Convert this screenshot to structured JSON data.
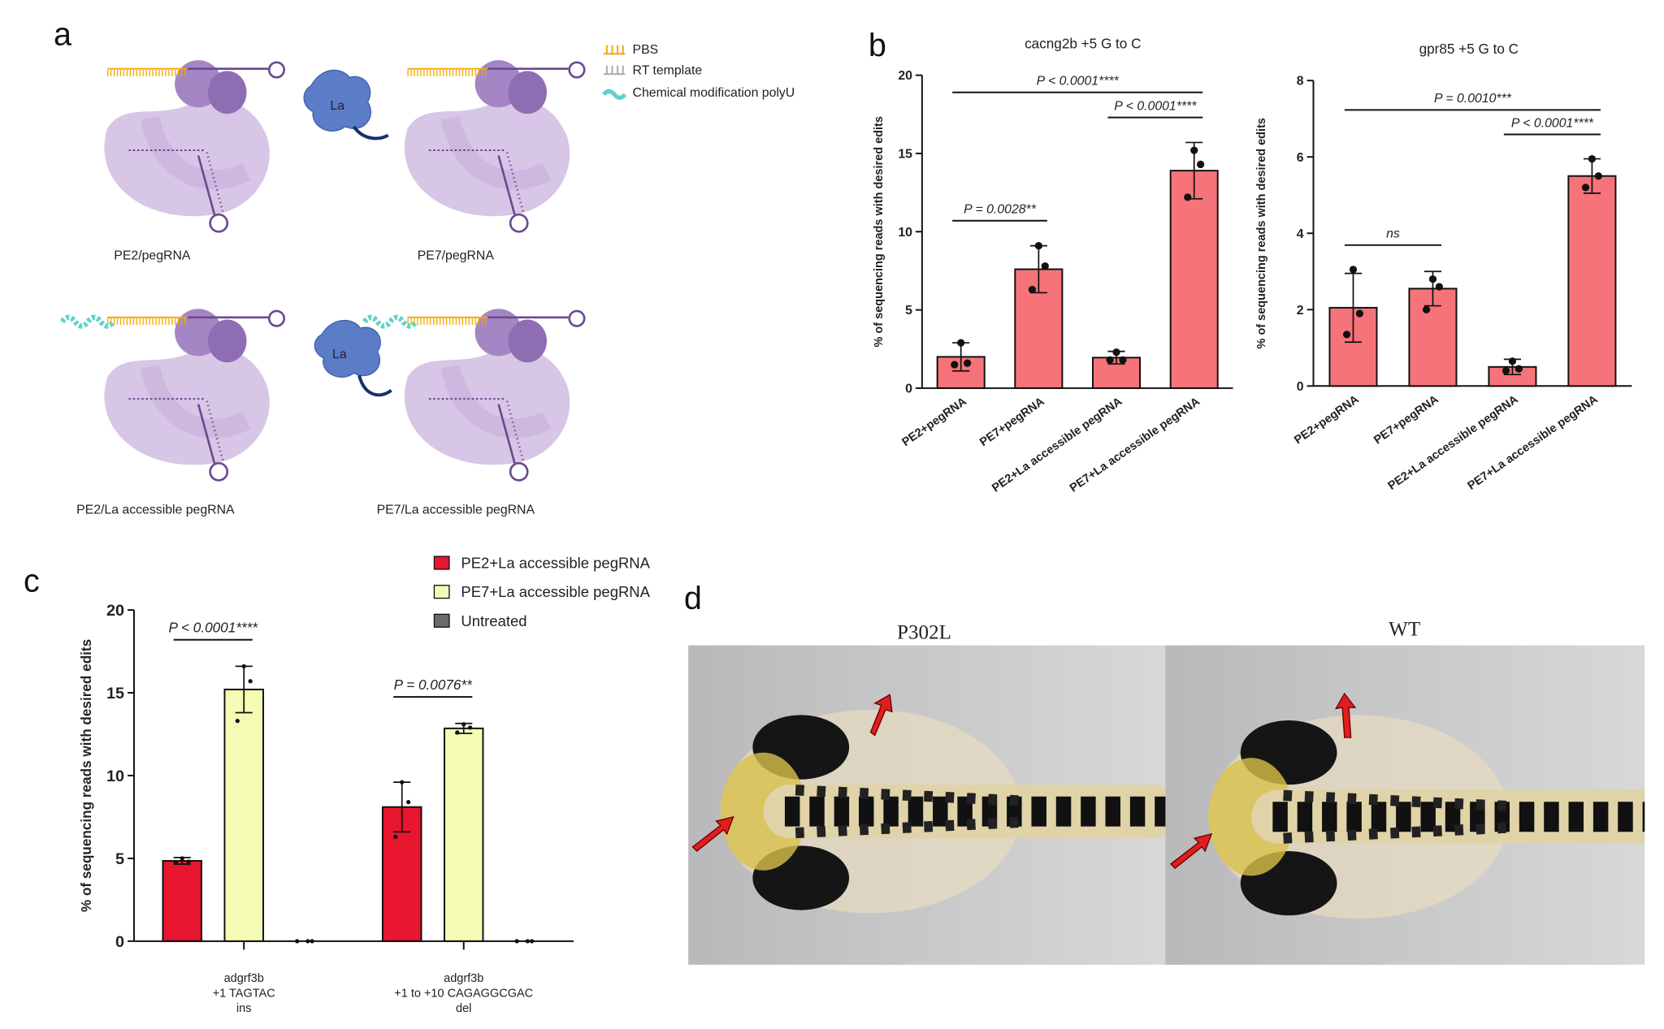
{
  "panel_labels": [
    "a",
    "b",
    "c",
    "d"
  ],
  "diagram": {
    "legend": [
      "PBS",
      "RT template",
      "Chemical modification polyU"
    ],
    "protein_label": "La",
    "captions": [
      "PE2/pegRNA",
      "PE7/pegRNA",
      "PE2/La accessible pegRNA",
      "PE7/La accessible pegRNA"
    ]
  },
  "photo": {
    "labels": [
      "P302L",
      "WT"
    ]
  },
  "chart_data": [
    {
      "type": "bar",
      "title": "cacng2b +5 G to C",
      "y_label": "% of sequencing reads with desired edits",
      "categories": [
        "PE2+pegRNA",
        "PE7+pegRNA",
        "PE2+La accessible pegRNA",
        "PE7+La accessible pegRNA"
      ],
      "values": [
        2.0,
        7.6,
        1.95,
        13.9
      ],
      "errors": [
        0.9,
        1.5,
        0.4,
        1.8
      ],
      "points": [
        [
          2.9,
          1.6,
          1.5
        ],
        [
          9.1,
          7.8,
          6.3
        ],
        [
          2.3,
          1.8,
          1.8
        ],
        [
          15.2,
          14.3,
          12.2
        ]
      ],
      "color": "#f7737a",
      "ylim": [
        0,
        20
      ],
      "yticks": [
        0,
        5,
        10,
        15,
        20
      ],
      "comparisons": [
        {
          "between": [
            0,
            1
          ],
          "label": "P = 0.0028**"
        },
        {
          "between": [
            2,
            3
          ],
          "label": "P < 0.0001****"
        },
        {
          "between": [
            0,
            3
          ],
          "label": "P < 0.0001****"
        }
      ]
    },
    {
      "type": "bar",
      "title": "gpr85 +5 G to C",
      "y_label": "% of sequencing reads with desired edits",
      "categories": [
        "PE2+pegRNA",
        "PE7+pegRNA",
        "PE2+La accessible pegRNA",
        "PE7+La accessible pegRNA"
      ],
      "values": [
        2.05,
        2.55,
        0.5,
        5.5
      ],
      "errors": [
        0.9,
        0.45,
        0.2,
        0.45
      ],
      "points": [
        [
          3.05,
          1.9,
          1.35
        ],
        [
          2.8,
          2.6,
          2.0
        ],
        [
          0.65,
          0.45,
          0.4
        ],
        [
          5.95,
          5.5,
          5.2
        ]
      ],
      "color": "#f7737a",
      "ylim": [
        0,
        8
      ],
      "yticks": [
        0,
        2,
        4,
        6,
        8
      ],
      "comparisons": [
        {
          "between": [
            0,
            1
          ],
          "label": "ns"
        },
        {
          "between": [
            2,
            3
          ],
          "label": "P < 0.0001****"
        },
        {
          "between": [
            0,
            3
          ],
          "label": "P = 0.0010***"
        }
      ]
    },
    {
      "type": "bar",
      "y_label": "% of sequencing reads with desired edits",
      "categories": [
        [
          "adgrf3b",
          "+1 TAGTAC",
          "ins"
        ],
        [
          "adgrf3b",
          "+1 to +10 CAGAGGCGAC",
          "del"
        ]
      ],
      "series": [
        {
          "name": "PE2+La accessible pegRNA",
          "color": "#e8152e",
          "values": [
            4.85,
            8.1
          ],
          "errors": [
            0.2,
            1.5
          ],
          "points": [
            [
              5.0,
              4.8,
              4.75
            ],
            [
              9.6,
              8.4,
              6.3
            ]
          ]
        },
        {
          "name": "PE7+La accessible pegRNA",
          "color": "#f5fbb4",
          "values": [
            15.2,
            12.85
          ],
          "errors": [
            1.4,
            0.3
          ],
          "points": [
            [
              16.6,
              15.7,
              13.3
            ],
            [
              13.1,
              12.9,
              12.6
            ]
          ]
        },
        {
          "name": "Untreated",
          "color": "#6b6b6b",
          "values": [
            0,
            0
          ],
          "points": [
            [
              0,
              0,
              0
            ],
            [
              0,
              0,
              0
            ]
          ]
        }
      ],
      "ylim": [
        0,
        20
      ],
      "yticks": [
        0,
        5,
        10,
        15,
        20
      ],
      "legend": "upper right",
      "comparisons": [
        {
          "category": 0,
          "between": [
            0,
            1
          ],
          "label": "P < 0.0001****"
        },
        {
          "category": 1,
          "between": [
            0,
            1
          ],
          "label": "P = 0.0076**"
        }
      ]
    }
  ]
}
